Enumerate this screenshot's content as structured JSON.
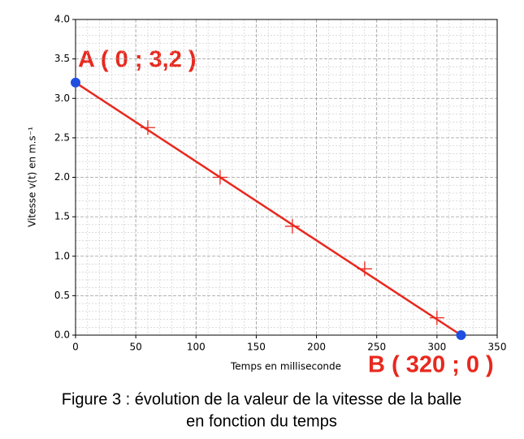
{
  "chart_data": {
    "type": "line",
    "xlabel": "Temps en milliseconde",
    "ylabel": "Vitesse v(t) en m.s⁻¹",
    "annotations": [
      "A ( 0 ; 3,2 )",
      "B ( 320 ; 0 )"
    ],
    "caption": [
      "Figure 3 : évolution de la valeur de la vitesse de la balle",
      "en fonction du temps"
    ],
    "xlim": [
      0,
      350
    ],
    "xticks": [
      0,
      50,
      100,
      150,
      200,
      250,
      300,
      350
    ],
    "ylim": [
      0,
      4.0
    ],
    "yticks": [
      {
        "value": 0,
        "label": "0.0"
      },
      0.5,
      {
        "value": 1,
        "label": "1.0"
      },
      1.5,
      {
        "value": 2,
        "label": "2.0"
      },
      2.5,
      {
        "value": 3,
        "label": "3.0"
      },
      3.5,
      {
        "value": 4,
        "label": "4.0"
      }
    ],
    "grid": true,
    "minor_xticks": [
      10,
      20,
      30,
      40,
      60,
      70,
      80,
      90,
      110,
      120,
      130,
      140,
      160,
      170,
      180,
      190,
      210,
      220,
      230,
      240,
      260,
      270,
      280,
      290,
      310,
      320,
      330,
      340
    ],
    "minor_yticks": [
      0.1,
      0.2,
      0.3,
      0.4,
      0.6,
      0.7,
      0.8,
      0.9,
      1.1,
      1.2,
      1.3,
      1.4,
      1.6,
      1.7,
      1.8,
      1.9,
      2.1,
      2.2,
      2.3,
      2.4,
      2.6,
      2.7,
      2.8,
      2.9,
      3.1,
      3.2,
      3.3,
      3.4,
      3.6,
      3.7,
      3.8,
      3.9
    ],
    "series": [
      {
        "color": "#e8281e",
        "marker": "none",
        "x": [
          0,
          320
        ],
        "values": [
          3.2,
          0
        ]
      },
      {
        "color": "#e8281e",
        "marker": "+",
        "x": [
          60,
          120,
          180,
          240,
          300
        ],
        "values": [
          2.63,
          2.0,
          1.38,
          0.84,
          0.22
        ]
      },
      {
        "color": "#1f4fe0",
        "marker": "o",
        "x": [
          0,
          320
        ],
        "values": [
          3.2,
          0
        ]
      }
    ]
  }
}
